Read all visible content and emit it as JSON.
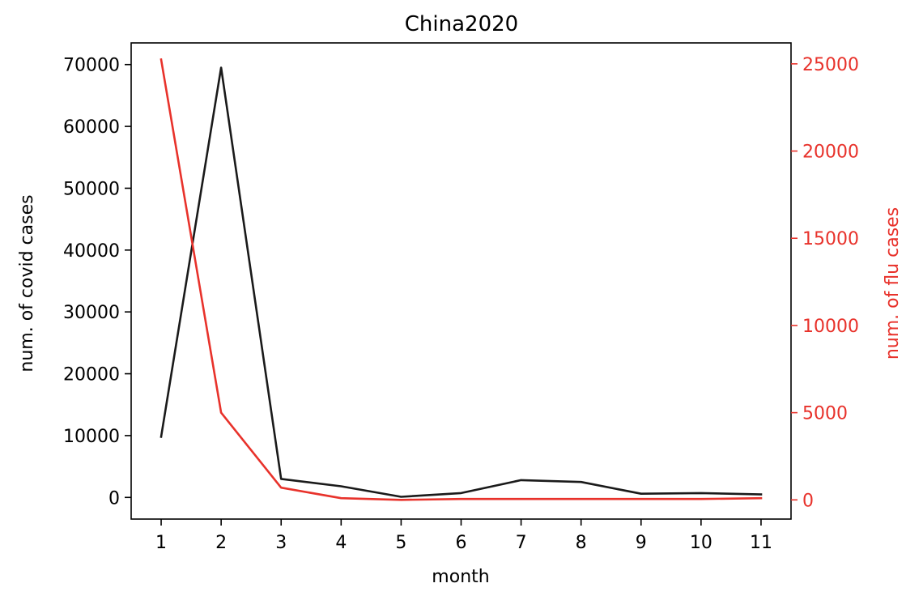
{
  "chart_data": {
    "type": "line",
    "title": "China2020",
    "xlabel": "month",
    "ylabel": "num. of covid cases",
    "y2label": "num. of flu cases",
    "x": [
      1,
      2,
      3,
      4,
      5,
      6,
      7,
      8,
      9,
      10,
      11
    ],
    "xticks": [
      "1",
      "2",
      "3",
      "4",
      "5",
      "6",
      "7",
      "8",
      "9",
      "10",
      "11"
    ],
    "xlim": [
      0.5,
      11.5
    ],
    "ylim": [
      -3500,
      73500
    ],
    "y2lim": [
      -1100,
      26200
    ],
    "yticks": [
      "0",
      "10000",
      "20000",
      "30000",
      "40000",
      "50000",
      "60000",
      "70000"
    ],
    "y2ticks": [
      "0",
      "5000",
      "10000",
      "15000",
      "20000",
      "25000"
    ],
    "grid": false,
    "series": [
      {
        "axis": "left",
        "color": "#1a1a1a",
        "values": [
          9800,
          69500,
          3000,
          1800,
          100,
          700,
          2800,
          2500,
          600,
          700,
          500
        ]
      },
      {
        "axis": "right",
        "color": "#e8322b",
        "values": [
          25250,
          5000,
          700,
          100,
          0,
          50,
          50,
          50,
          50,
          50,
          100
        ]
      }
    ]
  }
}
